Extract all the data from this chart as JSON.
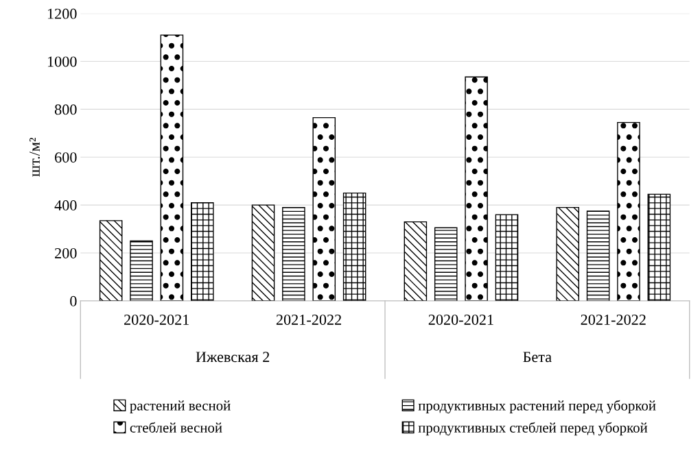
{
  "chart_data": {
    "type": "bar",
    "ylabel": "шт./м²",
    "categories": [
      "2020-2021",
      "2021-2022",
      "2020-2021",
      "2021-2022"
    ],
    "series": [
      {
        "name": "растений весной",
        "color": "#000000",
        "values": [
          335,
          400,
          330,
          390
        ]
      },
      {
        "name": "продуктивных растений перед уборкой",
        "color": "#000000",
        "values": [
          250,
          390,
          305,
          375
        ]
      },
      {
        "name": "стеблей весной",
        "color": "#000000",
        "values": [
          1110,
          765,
          935,
          745
        ]
      },
      {
        "name": "продуктивных стеблей перед уборкой",
        "color": "#000000",
        "values": [
          410,
          450,
          360,
          445
        ]
      }
    ],
    "annotations": [
      "Ижевская 2",
      "Бета"
    ],
    "ylim": [
      0,
      1200
    ],
    "yticks": [
      0,
      200,
      400,
      600,
      800,
      1000,
      1200
    ],
    "grid": "y",
    "legend": "bottom"
  }
}
